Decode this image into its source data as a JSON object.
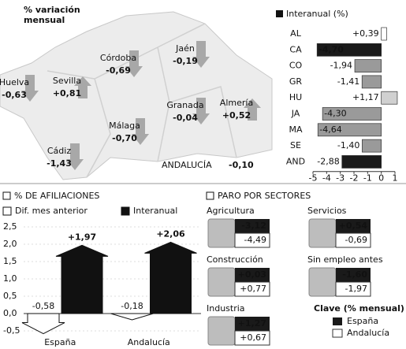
{
  "map": {
    "title": "% variación mensual",
    "regions": [
      {
        "name": "Huelva",
        "value": "-0,63"
      },
      {
        "name": "Sevilla",
        "value": "+0,81"
      },
      {
        "name": "Córdoba",
        "value": "-0,69"
      },
      {
        "name": "Jaén",
        "value": "-0,19"
      },
      {
        "name": "Granada",
        "value": "-0,04"
      },
      {
        "name": "Almería",
        "value": "+0,52"
      },
      {
        "name": "Málaga",
        "value": "-0,70"
      },
      {
        "name": "Cádiz",
        "value": "-1,43"
      }
    ],
    "total": {
      "name": "ANDALUCÍA",
      "value": "-0,10"
    }
  },
  "chart_data": [
    {
      "type": "bar",
      "orientation": "horizontal",
      "title": "Interanual (%)",
      "categories": [
        "AL",
        "CA",
        "CO",
        "GR",
        "HU",
        "JA",
        "MA",
        "SE",
        "AND"
      ],
      "values": [
        0.39,
        -4.7,
        -1.94,
        -1.41,
        1.17,
        -4.3,
        -4.64,
        -1.4,
        -2.88
      ],
      "value_labels": [
        "+0,39",
        "-4,70",
        "-1,94",
        "-1,41",
        "+1,17",
        "-4,30",
        "-4,64",
        "-1,40",
        "-2,88"
      ],
      "colors": [
        "#ffffff",
        "#1a1a1a",
        "#9a9a9a",
        "#9a9a9a",
        "#d0d0d0",
        "#9a9a9a",
        "#9a9a9a",
        "#9a9a9a",
        "#1a1a1a"
      ],
      "xlim": [
        -5,
        1
      ],
      "xticks": [
        -5,
        -4,
        -3,
        -2,
        -1,
        0,
        1
      ]
    },
    {
      "type": "arrow",
      "title": "% DE AFILIACIONES",
      "categories": [
        "España",
        "Andalucía"
      ],
      "series": [
        {
          "name": "Dif. mes anterior",
          "color": "#ffffff",
          "values": [
            -0.58,
            -0.18
          ],
          "value_labels": [
            "-0,58",
            "-0,18"
          ]
        },
        {
          "name": "Interanual",
          "color": "#111111",
          "values": [
            1.97,
            2.06
          ],
          "value_labels": [
            "+1,97",
            "+2,06"
          ]
        }
      ],
      "ylim": [
        -0.5,
        2.5
      ],
      "yticks": [
        {
          "value": -0.5,
          "label": "-0,5"
        },
        {
          "value": 0,
          "label": "0,0"
        },
        {
          "value": 0.5,
          "label": "0,5"
        },
        {
          "value": 1,
          "label": "1,0"
        },
        {
          "value": 1.5,
          "label": "1,5"
        },
        {
          "value": 2,
          "label": "2,0"
        },
        {
          "value": 2.5,
          "label": "2,5"
        }
      ]
    }
  ],
  "sectors": {
    "title": "PARO POR SECTORES",
    "items": [
      {
        "name": "Agricultura",
        "spain": "-3,12",
        "andalucia": "-4,49"
      },
      {
        "name": "Servicios",
        "spain": "+0,54",
        "andalucia": "-0,69"
      },
      {
        "name": "Construcción",
        "spain": "+0,03",
        "andalucia": "+0,77"
      },
      {
        "name": "Sin empleo antes",
        "spain": "-1,60",
        "andalucia": "-1,97"
      },
      {
        "name": "Industria",
        "spain": "+1,27",
        "andalucia": "+0,67"
      }
    ],
    "key": {
      "title": "Clave (% mensual)",
      "spain": "España",
      "andalucia": "Andalucía"
    }
  }
}
